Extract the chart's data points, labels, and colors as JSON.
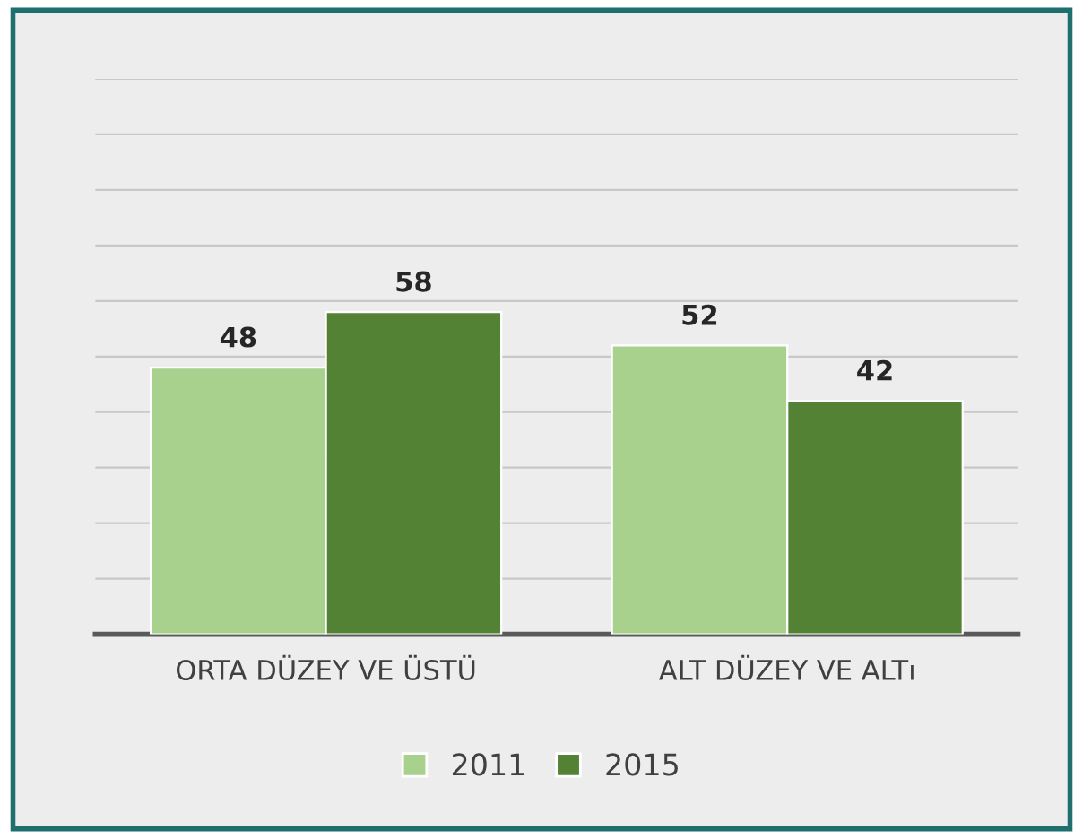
{
  "chart_data": {
    "type": "bar",
    "categories": [
      "ORTA DÜZEY VE ÜSTÜ",
      "ALT DÜZEY VE ALTı"
    ],
    "series": [
      {
        "name": "2011",
        "color": "#a9d18e",
        "values": [
          48,
          52
        ]
      },
      {
        "name": "2015",
        "color": "#548235",
        "values": [
          58,
          42
        ]
      }
    ],
    "ylim": [
      0,
      100
    ],
    "yticks": [
      {
        "value": 0,
        "label": null
      },
      {
        "value": 10,
        "label": null
      },
      {
        "value": 20,
        "label": null
      },
      {
        "value": 30,
        "label": null
      },
      {
        "value": 40,
        "label": null
      },
      {
        "value": 50,
        "label": null
      },
      {
        "value": 60,
        "label": null
      },
      {
        "value": 70,
        "label": null
      },
      {
        "value": 80,
        "label": null
      },
      {
        "value": 90,
        "label": null
      },
      {
        "value": 100,
        "label": null
      }
    ],
    "tick_labels": "x",
    "grid": "y",
    "legend": "bottom",
    "data_labels": true
  }
}
